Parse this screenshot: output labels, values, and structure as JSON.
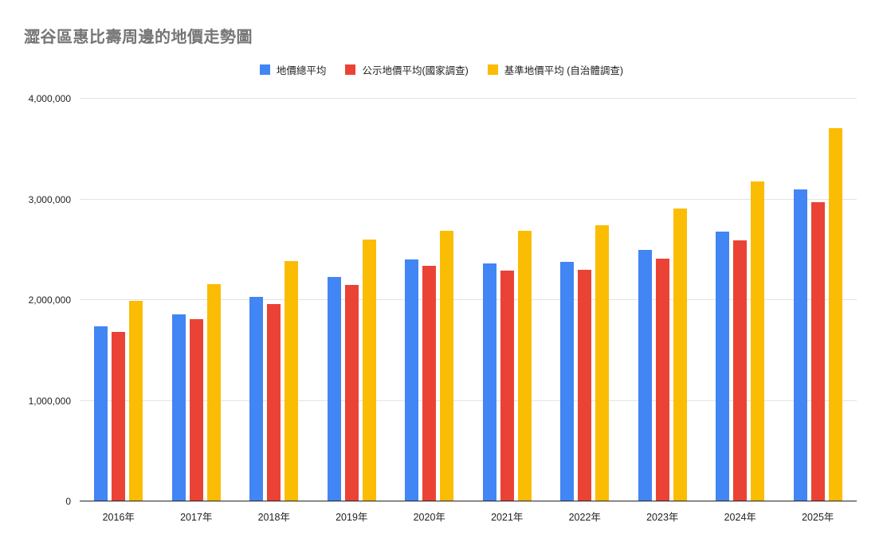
{
  "chart_data": {
    "type": "bar",
    "title": "澀谷區惠比壽周邊的地價走勢圖",
    "categories": [
      "2016年",
      "2017年",
      "2018年",
      "2019年",
      "2020年",
      "2021年",
      "2022年",
      "2023年",
      "2024年",
      "2025年"
    ],
    "series": [
      {
        "name": "地價總平均",
        "color": "#4285f4",
        "values": [
          1740000,
          1860000,
          2030000,
          2230000,
          2400000,
          2360000,
          2380000,
          2500000,
          2680000,
          3100000
        ]
      },
      {
        "name": "公示地價平均(國家調查)",
        "color": "#ea4335",
        "values": [
          1680000,
          1810000,
          1960000,
          2150000,
          2340000,
          2290000,
          2300000,
          2410000,
          2590000,
          2970000
        ]
      },
      {
        "name": "基準地價平均 (自治體調查)",
        "color": "#fbbc04",
        "values": [
          1990000,
          2160000,
          2390000,
          2600000,
          2690000,
          2690000,
          2740000,
          2910000,
          3180000,
          3710000
        ]
      }
    ],
    "xlabel": "",
    "ylabel": "",
    "ylim": [
      0,
      4000000
    ],
    "yticks": [
      {
        "value": 0,
        "label": "0"
      },
      {
        "value": 1000000,
        "label": "1,000,000"
      },
      {
        "value": 2000000,
        "label": "2,000,000"
      },
      {
        "value": 3000000,
        "label": "3,000,000"
      },
      {
        "value": 4000000,
        "label": "4,000,000"
      }
    ],
    "grid": true,
    "legend_position": "top",
    "colors": {
      "title": "#757575",
      "axis_text": "#222222",
      "gridline": "#e3e3e3",
      "baseline": "#212121",
      "background": "#ffffff"
    }
  }
}
